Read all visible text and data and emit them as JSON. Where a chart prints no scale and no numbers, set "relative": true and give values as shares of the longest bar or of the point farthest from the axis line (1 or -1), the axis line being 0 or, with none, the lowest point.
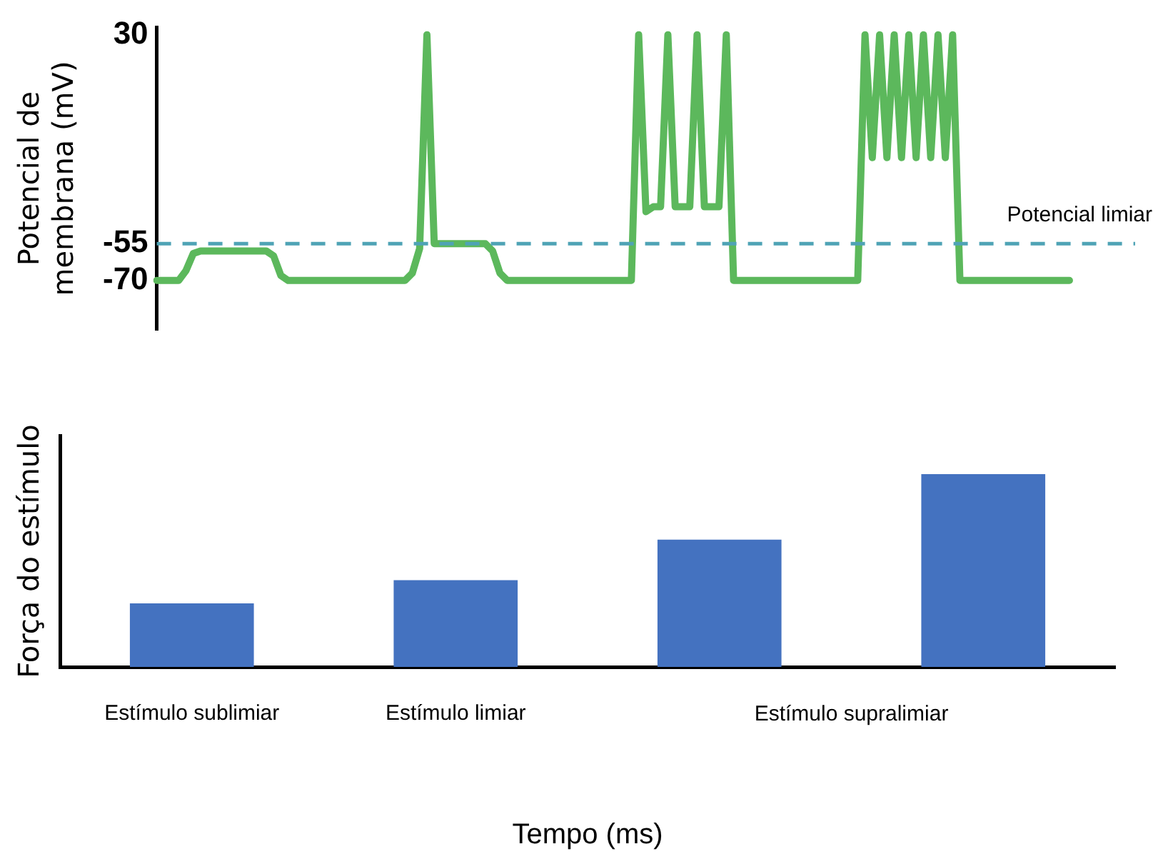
{
  "chart_data": [
    {
      "type": "line",
      "ylabel": "Potencial de membrana (mV)",
      "categories": [
        null,
        null,
        null,
        null,
        null,
        null,
        null,
        null,
        null,
        null,
        null,
        null,
        null,
        null,
        null,
        null,
        null,
        null,
        null,
        null,
        null,
        null,
        null,
        null,
        null,
        null,
        null,
        null,
        null,
        null,
        null,
        null,
        null,
        null,
        null,
        null,
        null,
        null,
        null,
        null,
        null,
        null,
        null,
        null,
        null,
        null,
        null,
        null,
        null,
        null,
        null,
        null,
        null,
        null,
        null,
        null,
        null,
        null,
        null,
        null,
        null,
        null,
        null,
        null,
        null,
        null,
        null,
        null,
        null,
        null,
        null,
        null,
        null,
        null,
        null,
        null,
        null,
        null,
        null,
        null,
        null,
        null,
        null,
        null,
        null,
        null,
        null,
        null,
        null,
        null,
        null,
        null,
        null,
        null,
        null,
        null,
        null,
        null,
        null,
        null,
        null,
        null,
        null,
        null,
        null,
        null,
        null,
        null,
        null,
        null,
        null,
        null,
        null,
        null,
        null,
        null,
        null,
        null,
        null,
        null,
        null,
        null,
        null,
        null,
        null,
        null,
        null,
        null,
        null,
        null,
        null,
        null,
        null,
        null,
        null
      ],
      "series": [
        {
          "color": "#5cb85c",
          "values": [
            -70,
            -70,
            -70,
            -70,
            -66,
            -59,
            -58,
            -58,
            -58,
            -58,
            -58,
            -58,
            -58,
            -58,
            -58,
            -58,
            -60,
            -68,
            -70,
            -70,
            -70,
            -70,
            -70,
            -70,
            -70,
            -70,
            -70,
            -70,
            -70,
            -70,
            -70,
            -70,
            -70,
            -70,
            -70,
            -67,
            -57,
            30,
            -55,
            -55,
            -55,
            -55,
            -55,
            -55,
            -55,
            -55,
            -58,
            -67,
            -70,
            -70,
            -70,
            -70,
            -70,
            -70,
            -70,
            -70,
            -70,
            -70,
            -70,
            -70,
            -70,
            -70,
            -70,
            -70,
            -70,
            -70,
            30,
            -42,
            -40,
            -40,
            30,
            -40,
            -40,
            -40,
            30,
            -40,
            -40,
            -40,
            30,
            -70,
            -70,
            -70,
            -70,
            -70,
            -70,
            -70,
            -70,
            -70,
            -70,
            -70,
            -70,
            -70,
            -70,
            -70,
            -70,
            -70,
            -70,
            30,
            -20,
            30,
            -20,
            30,
            -20,
            30,
            -20,
            30,
            -20,
            30,
            -20,
            30,
            -70,
            -70,
            -70,
            -70,
            -70,
            -70,
            -70,
            -70,
            -70,
            -70,
            -70,
            -70,
            -70,
            -70,
            -70,
            -70,
            null,
            null,
            null,
            null,
            null,
            null,
            null,
            null,
            null
          ]
        }
      ],
      "ylim": [
        -90,
        33
      ],
      "yticks": [
        30,
        -55,
        -70
      ],
      "grid": false,
      "legend": false,
      "marker": "none",
      "tick_labels": "y",
      "ref_lines": [
        {
          "axis": "y",
          "value": -55,
          "label": "Potencial limiar",
          "color": "#4fa3b5",
          "line_style": "dashed"
        }
      ]
    },
    {
      "type": "bar",
      "xlabel": "Tempo (ms)",
      "ylabel": "Força do estímulo",
      "categories": [
        "Estímulo sublimiar",
        "Estímulo limiar",
        null,
        null
      ],
      "values": [
        0.33,
        0.45,
        0.66,
        1
      ],
      "color": "#4472c0",
      "relative": true,
      "grid": false,
      "legend": false,
      "tick_labels": "x",
      "annotations": [
        "Estímulo supralimiar"
      ]
    }
  ]
}
